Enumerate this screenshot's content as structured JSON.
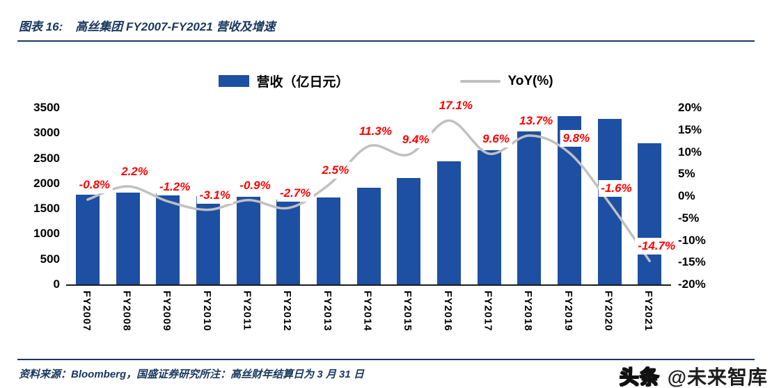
{
  "header": {
    "figure_label": "图表 16:",
    "title": "高丝集团 FY2007-FY2021 营收及增速"
  },
  "legend": {
    "bar": "营收（亿日元）",
    "line": "YoY(%)"
  },
  "footer": {
    "text": "资料来源：Bloomberg，国盛证券研究所注：高丝财年结算日为 3 月 31 日"
  },
  "watermark": {
    "part1": "头条",
    "part2": "@未来智库"
  },
  "colors": {
    "bar": "#1D4FA3",
    "line": "#C0C0C0",
    "data_label": "#FF0000",
    "navy": "#17375E"
  },
  "chart_data": {
    "type": "bar",
    "title": "高丝集团 FY2007-FY2021 营收及增速",
    "categories": [
      "FY2007",
      "FY2008",
      "FY2009",
      "FY2010",
      "FY2011",
      "FY2012",
      "FY2013",
      "FY2014",
      "FY2015",
      "FY2016",
      "FY2017",
      "FY2018",
      "FY2019",
      "FY2020",
      "FY2021"
    ],
    "series": [
      {
        "name": "营收（亿日元）",
        "type": "bar",
        "axis": "left",
        "values": [
          1784,
          1824,
          1803,
          1747,
          1732,
          1685,
          1727,
          1922,
          2103,
          2433,
          2663,
          3027,
          3329,
          3276,
          2794
        ]
      },
      {
        "name": "YoY(%)",
        "type": "line",
        "axis": "right",
        "values": [
          -0.8,
          2.2,
          -1.2,
          -3.1,
          -0.9,
          -2.7,
          2.5,
          11.3,
          9.4,
          17.1,
          9.6,
          13.7,
          9.8,
          -1.6,
          -14.7
        ]
      }
    ],
    "data_labels": [
      "-0.8%",
      "2.2%",
      "-1.2%",
      "-3.1%",
      "-0.9%",
      "-2.7%",
      "2.5%",
      "11.3%",
      "9.4%",
      "17.1%",
      "9.6%",
      "13.7%",
      "9.8%",
      "-1.6%",
      "-14.7%"
    ],
    "left_axis": {
      "min": 0,
      "max": 3500,
      "ticks": [
        "3500",
        "3000",
        "2500",
        "2000",
        "1500",
        "1000",
        "500",
        "0"
      ]
    },
    "right_axis": {
      "min": -20,
      "max": 20,
      "ticks": [
        "20%",
        "15%",
        "10%",
        "5%",
        "0%",
        "-5%",
        "-10%",
        "-15%",
        "-20%"
      ]
    },
    "grid": false,
    "legend_position": "top"
  }
}
